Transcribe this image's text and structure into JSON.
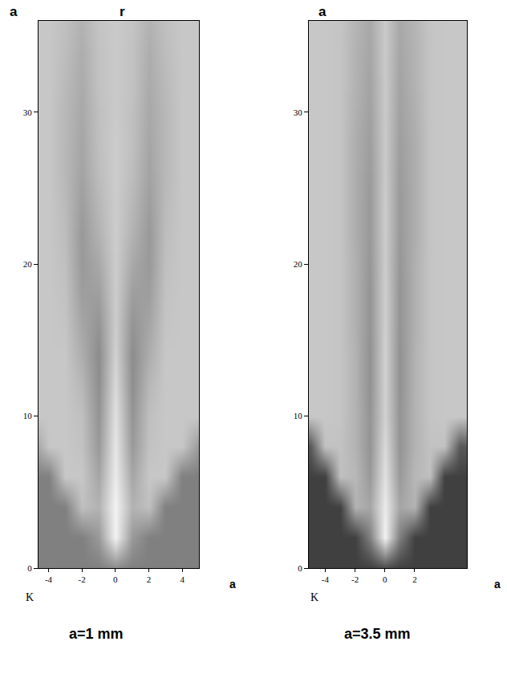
{
  "chart_data": [
    {
      "type": "heatmap",
      "panel": "a",
      "title": "r",
      "xlabel": "a",
      "annotations": [
        "K"
      ],
      "subtitle": "a=1 mm",
      "color": "gray",
      "zlim": [
        0,
        1
      ],
      "xlim": [
        -4.6,
        5
      ],
      "ylim": [
        0,
        36
      ],
      "xticks": [
        -4,
        -2,
        0,
        2,
        4
      ],
      "yticks": [
        0,
        10,
        20,
        30
      ],
      "x": [
        -5,
        -4,
        -3,
        -2,
        -1,
        0,
        1,
        2,
        3,
        4,
        5
      ],
      "y": [
        0,
        2,
        4,
        6,
        8,
        10,
        12,
        14,
        16,
        18,
        20,
        22,
        24,
        26,
        28,
        30,
        32,
        34,
        36
      ],
      "z": [
        [
          0.5,
          0.5,
          0.5,
          0.5,
          0.5,
          0.55,
          0.5,
          0.5,
          0.5,
          0.5,
          0.5
        ],
        [
          0.5,
          0.5,
          0.5,
          0.5,
          0.6,
          0.95,
          0.6,
          0.5,
          0.5,
          0.5,
          0.5
        ],
        [
          0.5,
          0.5,
          0.5,
          0.75,
          0.7,
          0.95,
          0.7,
          0.75,
          0.5,
          0.5,
          0.5
        ],
        [
          0.5,
          0.5,
          0.78,
          0.78,
          0.65,
          0.92,
          0.65,
          0.78,
          0.78,
          0.5,
          0.5
        ],
        [
          0.6,
          0.78,
          0.78,
          0.76,
          0.6,
          0.9,
          0.6,
          0.76,
          0.78,
          0.78,
          0.6
        ],
        [
          0.78,
          0.78,
          0.78,
          0.75,
          0.58,
          0.88,
          0.58,
          0.75,
          0.78,
          0.78,
          0.78
        ],
        [
          0.78,
          0.78,
          0.78,
          0.72,
          0.56,
          0.85,
          0.56,
          0.72,
          0.78,
          0.78,
          0.78
        ],
        [
          0.78,
          0.78,
          0.78,
          0.68,
          0.55,
          0.82,
          0.55,
          0.68,
          0.78,
          0.78,
          0.78
        ],
        [
          0.78,
          0.78,
          0.77,
          0.65,
          0.58,
          0.8,
          0.58,
          0.65,
          0.77,
          0.78,
          0.78
        ],
        [
          0.78,
          0.78,
          0.76,
          0.62,
          0.62,
          0.8,
          0.62,
          0.62,
          0.76,
          0.78,
          0.78
        ],
        [
          0.78,
          0.78,
          0.75,
          0.6,
          0.66,
          0.8,
          0.66,
          0.6,
          0.75,
          0.78,
          0.78
        ],
        [
          0.78,
          0.78,
          0.74,
          0.6,
          0.7,
          0.8,
          0.7,
          0.6,
          0.74,
          0.78,
          0.78
        ],
        [
          0.78,
          0.78,
          0.73,
          0.62,
          0.72,
          0.8,
          0.72,
          0.62,
          0.73,
          0.78,
          0.78
        ],
        [
          0.78,
          0.78,
          0.72,
          0.64,
          0.74,
          0.8,
          0.74,
          0.64,
          0.72,
          0.78,
          0.78
        ],
        [
          0.78,
          0.78,
          0.72,
          0.65,
          0.75,
          0.8,
          0.75,
          0.65,
          0.72,
          0.78,
          0.78
        ],
        [
          0.78,
          0.78,
          0.72,
          0.66,
          0.75,
          0.79,
          0.75,
          0.66,
          0.72,
          0.78,
          0.78
        ],
        [
          0.78,
          0.78,
          0.73,
          0.67,
          0.76,
          0.79,
          0.76,
          0.67,
          0.73,
          0.78,
          0.78
        ],
        [
          0.78,
          0.78,
          0.74,
          0.68,
          0.76,
          0.79,
          0.76,
          0.68,
          0.74,
          0.78,
          0.78
        ],
        [
          0.78,
          0.78,
          0.75,
          0.7,
          0.77,
          0.79,
          0.77,
          0.7,
          0.75,
          0.78,
          0.78
        ]
      ]
    },
    {
      "type": "heatmap",
      "panel": "a",
      "xlabel": "a",
      "annotations": [
        "K"
      ],
      "subtitle": "a=3.5 mm",
      "color": "gray",
      "zlim": [
        0,
        1
      ],
      "xlim": [
        -5.1,
        5.5
      ],
      "ylim": [
        0,
        36
      ],
      "xticks": [
        -4,
        -2,
        0,
        2
      ],
      "yticks": [
        0,
        10,
        20,
        30
      ],
      "x": [
        -5,
        -4,
        -3,
        -2,
        -1,
        0,
        1,
        2,
        3,
        4,
        5
      ],
      "y": [
        0,
        2,
        4,
        6,
        8,
        10,
        12,
        14,
        16,
        18,
        20,
        22,
        24,
        26,
        28,
        30,
        32,
        34,
        36
      ],
      "z": [
        [
          0.25,
          0.25,
          0.25,
          0.25,
          0.25,
          0.3,
          0.25,
          0.25,
          0.25,
          0.25,
          0.25
        ],
        [
          0.25,
          0.25,
          0.25,
          0.25,
          0.5,
          0.95,
          0.5,
          0.25,
          0.25,
          0.25,
          0.25
        ],
        [
          0.25,
          0.25,
          0.25,
          0.7,
          0.65,
          0.92,
          0.65,
          0.7,
          0.25,
          0.25,
          0.25
        ],
        [
          0.25,
          0.25,
          0.75,
          0.72,
          0.6,
          0.88,
          0.6,
          0.72,
          0.75,
          0.25,
          0.25
        ],
        [
          0.35,
          0.76,
          0.76,
          0.7,
          0.58,
          0.85,
          0.58,
          0.7,
          0.76,
          0.76,
          0.35
        ],
        [
          0.78,
          0.78,
          0.77,
          0.7,
          0.58,
          0.82,
          0.58,
          0.7,
          0.77,
          0.78,
          0.78
        ],
        [
          0.78,
          0.78,
          0.77,
          0.7,
          0.57,
          0.82,
          0.57,
          0.7,
          0.77,
          0.78,
          0.78
        ],
        [
          0.78,
          0.78,
          0.77,
          0.7,
          0.57,
          0.82,
          0.57,
          0.7,
          0.77,
          0.78,
          0.78
        ],
        [
          0.78,
          0.78,
          0.77,
          0.69,
          0.58,
          0.81,
          0.58,
          0.69,
          0.77,
          0.78,
          0.78
        ],
        [
          0.78,
          0.78,
          0.77,
          0.69,
          0.58,
          0.81,
          0.58,
          0.69,
          0.77,
          0.78,
          0.78
        ],
        [
          0.78,
          0.78,
          0.77,
          0.69,
          0.59,
          0.8,
          0.59,
          0.69,
          0.77,
          0.78,
          0.78
        ],
        [
          0.78,
          0.78,
          0.77,
          0.68,
          0.6,
          0.8,
          0.6,
          0.68,
          0.77,
          0.78,
          0.78
        ],
        [
          0.78,
          0.78,
          0.77,
          0.68,
          0.6,
          0.8,
          0.6,
          0.68,
          0.77,
          0.78,
          0.78
        ],
        [
          0.78,
          0.78,
          0.77,
          0.68,
          0.61,
          0.79,
          0.61,
          0.68,
          0.77,
          0.78,
          0.78
        ],
        [
          0.78,
          0.78,
          0.77,
          0.68,
          0.62,
          0.79,
          0.62,
          0.68,
          0.77,
          0.78,
          0.78
        ],
        [
          0.78,
          0.78,
          0.77,
          0.69,
          0.63,
          0.79,
          0.63,
          0.69,
          0.77,
          0.78,
          0.78
        ],
        [
          0.78,
          0.78,
          0.77,
          0.7,
          0.64,
          0.79,
          0.64,
          0.7,
          0.77,
          0.78,
          0.78
        ],
        [
          0.78,
          0.78,
          0.77,
          0.7,
          0.65,
          0.79,
          0.65,
          0.7,
          0.77,
          0.78,
          0.78
        ],
        [
          0.78,
          0.78,
          0.77,
          0.71,
          0.66,
          0.79,
          0.66,
          0.71,
          0.77,
          0.78,
          0.78
        ]
      ]
    }
  ]
}
